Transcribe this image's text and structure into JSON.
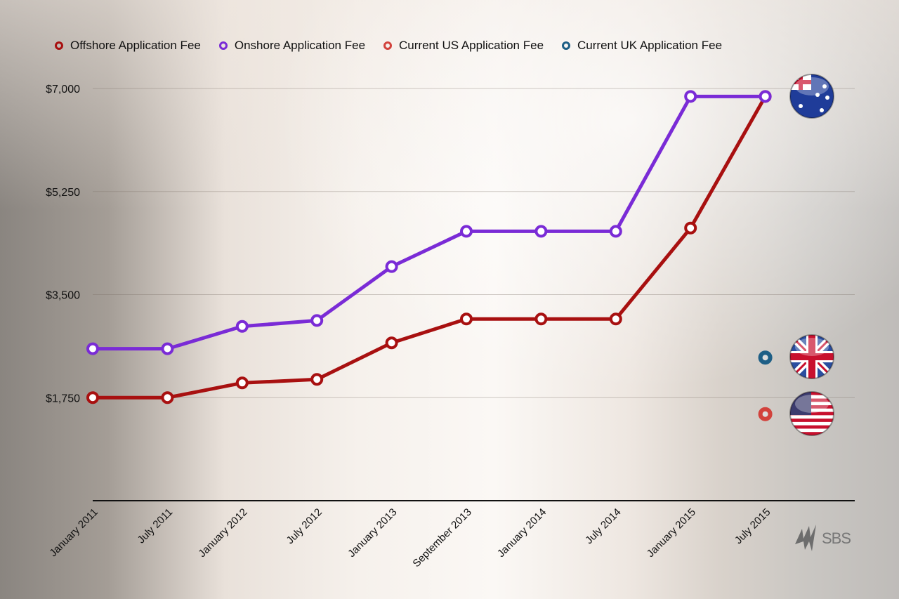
{
  "chart_data": {
    "type": "line",
    "categories": [
      "January 2011",
      "July 2011",
      "January 2012",
      "July 2012",
      "January 2013",
      "September 2013",
      "January 2014",
      "July 2014",
      "January 2015",
      "July 2015"
    ],
    "ylim": [
      0,
      7000
    ],
    "yticks": [
      1750,
      3500,
      5250,
      7000
    ],
    "ytick_labels": [
      "$1,750",
      "$3,500",
      "$5,250",
      "$7,000"
    ],
    "grid": true,
    "legend_position": "top",
    "series": [
      {
        "name": "Offshore Application Fee",
        "color": "#a81010",
        "values": [
          1750,
          1750,
          2000,
          2060,
          2680,
          3085,
          3085,
          3085,
          4630,
          6865
        ]
      },
      {
        "name": "Onshore Application Fee",
        "color": "#7a2bd6",
        "values": [
          2580,
          2580,
          2960,
          3060,
          3975,
          4575,
          4575,
          4575,
          6865,
          6865
        ]
      },
      {
        "name": "Current US Application Fee",
        "color": "#d2423c",
        "points": [
          {
            "x": "July 2015",
            "y": 1470
          }
        ],
        "flag": "us-flag"
      },
      {
        "name": "Current UK Application Fee",
        "color": "#1e5f86",
        "points": [
          {
            "x": "July 2015",
            "y": 2430
          }
        ],
        "flag": "uk-flag"
      }
    ],
    "au_flag": "australia-flag"
  },
  "logo": {
    "text": "SBS"
  }
}
